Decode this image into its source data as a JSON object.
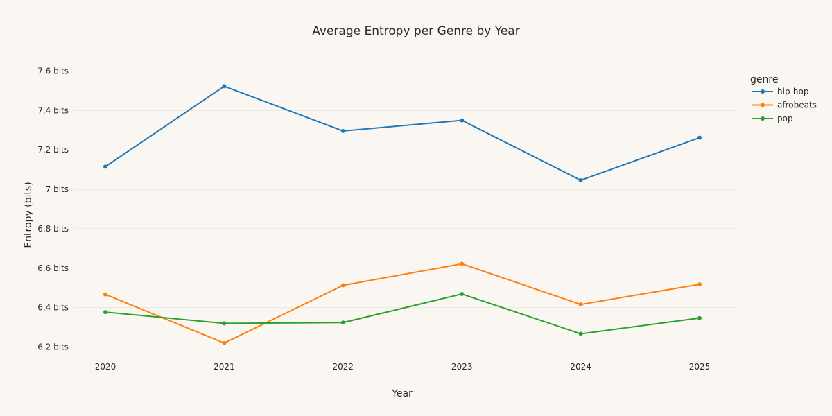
{
  "chart_data": {
    "type": "line",
    "title": "Average Entropy per Genre by Year",
    "xlabel": "Year",
    "ylabel": "Entropy (bits)",
    "x": [
      "2020",
      "2021",
      "2022",
      "2023",
      "2024",
      "2025"
    ],
    "ylim": [
      6.15,
      7.65
    ],
    "y_ticks": [
      6.2,
      6.4,
      6.6,
      6.8,
      7.0,
      7.2,
      7.4,
      7.6
    ],
    "y_tick_labels": [
      "6.2 bits",
      "6.4 bits",
      "6.6 bits",
      "6.8 bits",
      "7 bits",
      "7.2 bits",
      "7.4 bits",
      "7.6 bits"
    ],
    "grid": true,
    "legend_title": "genre",
    "legend_position": "top-right",
    "series": [
      {
        "name": "hip-hop",
        "color": "#1f77b4",
        "values": [
          7.115,
          7.523,
          7.296,
          7.35,
          7.046,
          7.262
        ]
      },
      {
        "name": "afrobeats",
        "color": "#ff7f0e",
        "values": [
          6.467,
          6.22,
          6.513,
          6.622,
          6.416,
          6.518
        ]
      },
      {
        "name": "pop",
        "color": "#2ca02c",
        "values": [
          6.377,
          6.32,
          6.324,
          6.469,
          6.267,
          6.347
        ]
      }
    ]
  }
}
